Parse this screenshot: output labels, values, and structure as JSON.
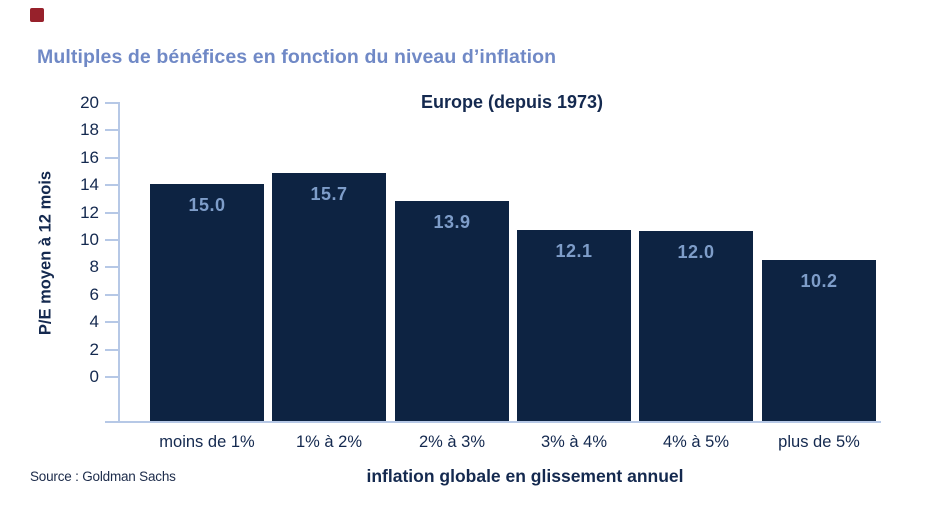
{
  "page": {
    "title": "Multiples de bénéfices en fonction du niveau d’inflation",
    "source": "Source : Goldman Sachs",
    "accent_color": "#97212b"
  },
  "chart_data": {
    "type": "bar",
    "title": "Europe (depuis 1973)",
    "categories": [
      "moins de 1%",
      "1% à 2%",
      "2% à 3%",
      "3% à 4%",
      "4% à 5%",
      "plus de 5%"
    ],
    "values": [
      15.0,
      15.7,
      13.9,
      12.1,
      12.0,
      10.2
    ],
    "value_labels": [
      "15.0",
      "15.7",
      "13.9",
      "12.1",
      "12.0",
      "10.2"
    ],
    "xlabel": "inflation globale en glissement annuel",
    "ylabel": "P/E moyen à 12 mois",
    "ylim": [
      0,
      20
    ],
    "yticks": [
      0,
      2,
      4,
      6,
      8,
      10,
      12,
      14,
      16,
      18,
      20
    ],
    "grid": false,
    "legend": "none",
    "value_labels_position": "inside-top",
    "colors": {
      "bar": "#0d2342",
      "bar_value_label": "#7e9dc9",
      "axis_line": "#b6c8e6",
      "text_navy": "#14294f",
      "heading_blue": "#7089c6"
    }
  }
}
